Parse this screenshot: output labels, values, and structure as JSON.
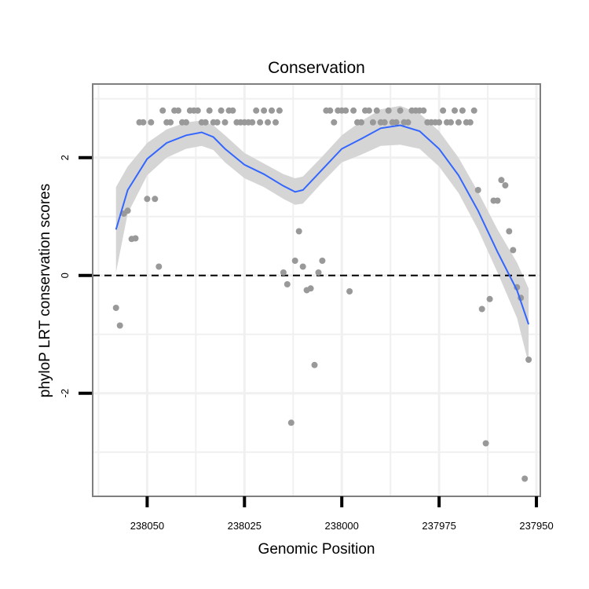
{
  "chart_data": {
    "type": "scatter",
    "title": "Conservation",
    "xlabel": "Genomic Position",
    "ylabel": "phyloP LRT conservation scores",
    "x_reversed": true,
    "xlim": [
      238064,
      237949
    ],
    "ylim": [
      -3.75,
      3.25
    ],
    "x_ticks": [
      238050,
      238025,
      238000,
      237975,
      237950
    ],
    "x_tick_labels": [
      "238050",
      "238025",
      "238000",
      "237975",
      "237950"
    ],
    "y_ticks": [
      -2,
      0,
      2
    ],
    "y_tick_labels": [
      "-2",
      "0",
      "2"
    ],
    "x_minor_gridlines": [
      238062.5,
      238037.5,
      238012.5,
      237987.5,
      237962.5
    ],
    "y_minor_gridlines": [
      -3,
      -1,
      1,
      3
    ],
    "reference_line": {
      "y": 0,
      "style": "dashed"
    },
    "colors": {
      "points": "#999999",
      "smooth_line": "#3366FF",
      "confidence_band": "#d3d3d3",
      "panel_border": "#7f7f7f",
      "grid": "#f0f0f0"
    },
    "points": [
      [
        238058,
        -0.55
      ],
      [
        238057,
        -0.85
      ],
      [
        238056,
        1.05
      ],
      [
        238055,
        1.1
      ],
      [
        238054,
        0.62
      ],
      [
        238053,
        0.63
      ],
      [
        238052,
        2.6
      ],
      [
        238051,
        2.6
      ],
      [
        238050,
        1.3
      ],
      [
        238049,
        2.6
      ],
      [
        238048,
        1.3
      ],
      [
        238047,
        0.15
      ],
      [
        238046,
        2.8
      ],
      [
        238045,
        2.6
      ],
      [
        238044,
        2.6
      ],
      [
        238043,
        2.8
      ],
      [
        238042,
        2.8
      ],
      [
        238041,
        2.6
      ],
      [
        238040,
        2.6
      ],
      [
        238039,
        2.8
      ],
      [
        238038,
        2.8
      ],
      [
        238037,
        2.8
      ],
      [
        238036,
        2.6
      ],
      [
        238035,
        2.6
      ],
      [
        238034,
        2.8
      ],
      [
        238033,
        2.6
      ],
      [
        238032,
        2.6
      ],
      [
        238031,
        2.8
      ],
      [
        238030,
        2.6
      ],
      [
        238029,
        2.8
      ],
      [
        238028,
        2.8
      ],
      [
        238027,
        2.6
      ],
      [
        238026,
        2.6
      ],
      [
        238025,
        2.6
      ],
      [
        238024,
        2.6
      ],
      [
        238023,
        2.6
      ],
      [
        238022,
        2.8
      ],
      [
        238021,
        2.6
      ],
      [
        238020,
        2.8
      ],
      [
        238019,
        2.6
      ],
      [
        238018,
        2.8
      ],
      [
        238017,
        2.6
      ],
      [
        238016,
        2.8
      ],
      [
        238015,
        0.05
      ],
      [
        238014,
        -0.15
      ],
      [
        238013,
        -2.5
      ],
      [
        238012,
        0.25
      ],
      [
        238011,
        0.75
      ],
      [
        238010,
        0.15
      ],
      [
        238009,
        -0.25
      ],
      [
        238008,
        -0.22
      ],
      [
        238007,
        -1.52
      ],
      [
        238006,
        0.05
      ],
      [
        238005,
        0.25
      ],
      [
        238004,
        2.8
      ],
      [
        238003,
        2.8
      ],
      [
        238002,
        2.6
      ],
      [
        238001,
        2.8
      ],
      [
        238000,
        2.8
      ],
      [
        237999,
        2.8
      ],
      [
        237998,
        -0.27
      ],
      [
        237997,
        2.8
      ],
      [
        237996,
        2.6
      ],
      [
        237995,
        2.6
      ],
      [
        237994,
        2.8
      ],
      [
        237993,
        2.8
      ],
      [
        237992,
        2.6
      ],
      [
        237991,
        2.8
      ],
      [
        237990,
        2.6
      ],
      [
        237989,
        2.6
      ],
      [
        237988,
        2.8
      ],
      [
        237987,
        2.6
      ],
      [
        237986,
        2.6
      ],
      [
        237985,
        2.8
      ],
      [
        237984,
        2.6
      ],
      [
        237983,
        2.6
      ],
      [
        237982,
        2.8
      ],
      [
        237981,
        2.8
      ],
      [
        237980,
        2.8
      ],
      [
        237979,
        2.8
      ],
      [
        237978,
        2.6
      ],
      [
        237977,
        2.6
      ],
      [
        237976,
        2.6
      ],
      [
        237975,
        2.6
      ],
      [
        237974,
        2.8
      ],
      [
        237973,
        2.6
      ],
      [
        237972,
        2.6
      ],
      [
        237971,
        2.8
      ],
      [
        237970,
        2.6
      ],
      [
        237969,
        2.8
      ],
      [
        237968,
        2.6
      ],
      [
        237967,
        2.6
      ],
      [
        237966,
        2.8
      ],
      [
        237965,
        1.45
      ],
      [
        237964,
        -0.57
      ],
      [
        237963,
        -2.85
      ],
      [
        237962,
        -0.4
      ],
      [
        237961,
        1.27
      ],
      [
        237960,
        1.27
      ],
      [
        237959,
        1.62
      ],
      [
        237958,
        1.53
      ],
      [
        237957,
        0.75
      ],
      [
        237956,
        0.43
      ],
      [
        237955,
        -0.2
      ],
      [
        237954,
        -0.38
      ],
      [
        237953,
        -3.45
      ],
      [
        237952,
        -1.43
      ]
    ],
    "smooth": [
      [
        238058,
        0.78
      ],
      [
        238055,
        1.45
      ],
      [
        238050,
        1.98
      ],
      [
        238045,
        2.25
      ],
      [
        238040,
        2.38
      ],
      [
        238036,
        2.43
      ],
      [
        238033,
        2.35
      ],
      [
        238030,
        2.15
      ],
      [
        238025,
        1.88
      ],
      [
        238020,
        1.72
      ],
      [
        238015,
        1.52
      ],
      [
        238012,
        1.42
      ],
      [
        238010,
        1.45
      ],
      [
        238005,
        1.8
      ],
      [
        238000,
        2.15
      ],
      [
        237995,
        2.32
      ],
      [
        237990,
        2.5
      ],
      [
        237985,
        2.55
      ],
      [
        237980,
        2.45
      ],
      [
        237975,
        2.15
      ],
      [
        237970,
        1.7
      ],
      [
        237965,
        1.1
      ],
      [
        237960,
        0.4
      ],
      [
        237955,
        -0.25
      ],
      [
        237952,
        -0.83
      ]
    ],
    "band_upper": [
      [
        238058,
        1.5
      ],
      [
        238055,
        1.85
      ],
      [
        238050,
        2.25
      ],
      [
        238045,
        2.48
      ],
      [
        238040,
        2.6
      ],
      [
        238036,
        2.63
      ],
      [
        238033,
        2.55
      ],
      [
        238030,
        2.38
      ],
      [
        238025,
        2.08
      ],
      [
        238020,
        1.9
      ],
      [
        238015,
        1.72
      ],
      [
        238012,
        1.65
      ],
      [
        238010,
        1.68
      ],
      [
        238005,
        2.02
      ],
      [
        238000,
        2.38
      ],
      [
        237995,
        2.62
      ],
      [
        237990,
        2.82
      ],
      [
        237985,
        2.88
      ],
      [
        237980,
        2.75
      ],
      [
        237975,
        2.45
      ],
      [
        237970,
        2.0
      ],
      [
        237965,
        1.42
      ],
      [
        237960,
        0.78
      ],
      [
        237955,
        0.22
      ],
      [
        237952,
        -0.22
      ]
    ],
    "band_lower": [
      [
        238058,
        0.05
      ],
      [
        238055,
        1.05
      ],
      [
        238050,
        1.7
      ],
      [
        238045,
        2.0
      ],
      [
        238040,
        2.15
      ],
      [
        238036,
        2.2
      ],
      [
        238033,
        2.13
      ],
      [
        238030,
        1.92
      ],
      [
        238025,
        1.65
      ],
      [
        238020,
        1.5
      ],
      [
        238015,
        1.3
      ],
      [
        238012,
        1.2
      ],
      [
        238010,
        1.22
      ],
      [
        238005,
        1.58
      ],
      [
        238000,
        1.92
      ],
      [
        237995,
        2.05
      ],
      [
        237990,
        2.2
      ],
      [
        237985,
        2.22
      ],
      [
        237980,
        2.15
      ],
      [
        237975,
        1.85
      ],
      [
        237970,
        1.4
      ],
      [
        237965,
        0.78
      ],
      [
        237960,
        0.05
      ],
      [
        237955,
        -0.72
      ],
      [
        237952,
        -1.5
      ]
    ]
  }
}
